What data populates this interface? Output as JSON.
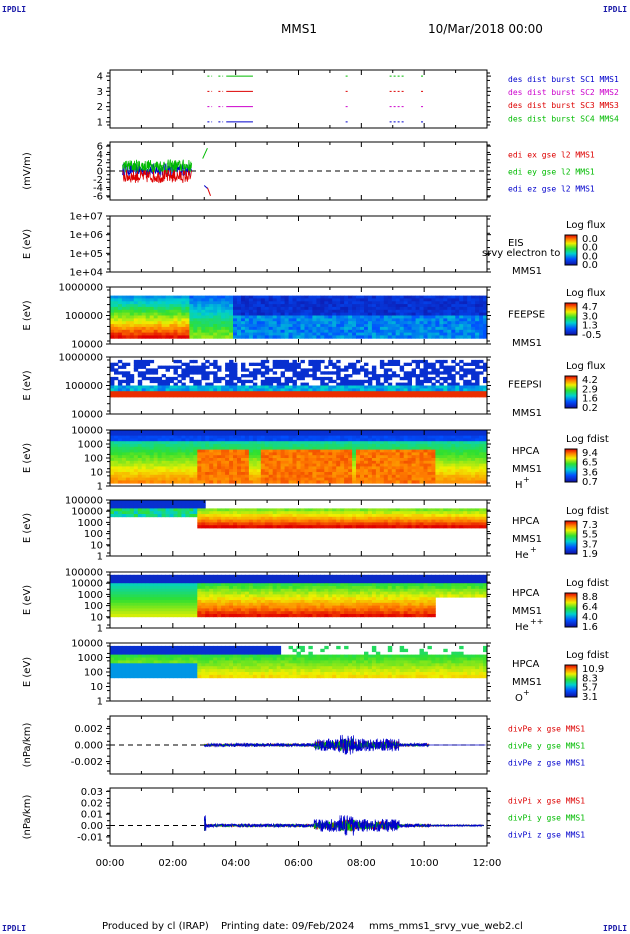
{
  "corners": [
    "IPDLI",
    "IPDLI",
    "IPDLI",
    "IPDLI"
  ],
  "header": {
    "spacecraft": "MMS1",
    "date": "10/Mar/2018 00:00"
  },
  "footer": {
    "produced": "Produced by cl (IRAP)",
    "printing": "Printing date: 09/Feb/2024",
    "file": "mms_mms1_srvy_vue_web2.cl"
  },
  "colors": {
    "red": "#dd0000",
    "green": "#00bb00",
    "blue": "#0000cc",
    "magenta": "#cc00cc",
    "text": "#000000"
  },
  "chart_data": [
    {
      "type": "line",
      "id": "burst",
      "ylabel": "",
      "yticks": [
        "1",
        "2",
        "3",
        "4"
      ],
      "ylim": [
        0.6,
        4.4
      ],
      "legend": [
        {
          "name": "des dist burst SC1 MMS1",
          "color": "#0000cc"
        },
        {
          "name": "des dist burst SC2 MMS2",
          "color": "#cc00cc"
        },
        {
          "name": "des dist burst SC3 MMS3",
          "color": "#dd0000"
        },
        {
          "name": "des dist burst SC4 MMS4",
          "color": "#00bb00"
        }
      ],
      "series": [
        {
          "name": "des dist burst SC1 MMS1",
          "level": 1,
          "color": "#0000cc",
          "segments": [
            [
              3.1,
              3.25
            ],
            [
              3.45,
              3.6
            ],
            [
              3.7,
              4.55
            ],
            [
              7.5,
              7.6
            ],
            [
              8.9,
              9.4
            ],
            [
              9.9,
              10.0
            ]
          ]
        },
        {
          "name": "des dist burst SC2 MMS2",
          "level": 2,
          "color": "#cc00cc",
          "segments": [
            [
              3.1,
              3.25
            ],
            [
              3.45,
              3.6
            ],
            [
              3.7,
              4.55
            ],
            [
              7.5,
              7.6
            ],
            [
              8.9,
              9.4
            ],
            [
              9.9,
              10.0
            ]
          ]
        },
        {
          "name": "des dist burst SC3 MMS3",
          "level": 3,
          "color": "#dd0000",
          "segments": [
            [
              3.1,
              3.25
            ],
            [
              3.45,
              3.6
            ],
            [
              3.7,
              4.55
            ],
            [
              7.5,
              7.6
            ],
            [
              8.9,
              9.4
            ],
            [
              9.9,
              10.0
            ]
          ]
        },
        {
          "name": "des dist burst SC4 MMS4",
          "level": 4,
          "color": "#00bb00",
          "segments": [
            [
              3.1,
              3.25
            ],
            [
              3.45,
              3.6
            ],
            [
              3.7,
              4.55
            ],
            [
              7.5,
              7.6
            ],
            [
              8.9,
              9.4
            ],
            [
              9.9,
              10.0
            ]
          ]
        }
      ]
    },
    {
      "type": "line",
      "id": "edi",
      "ylabel": "(mV/m)",
      "yticks": [
        "-6",
        "-4",
        "-2",
        "0",
        "2",
        "4",
        "6"
      ],
      "ylim": [
        -7,
        7
      ],
      "legend": [
        {
          "name": "edi ex gse l2 MMS1",
          "color": "#dd0000"
        },
        {
          "name": "edi ey gse l2 MMS1",
          "color": "#00bb00"
        },
        {
          "name": "edi ez gse l2 MMS1",
          "color": "#0000cc"
        }
      ],
      "data_range": [
        0.4,
        2.6
      ],
      "extra_points_x": [
        2.95,
        3.05,
        3.15
      ]
    },
    {
      "type": "heatmap",
      "id": "eis",
      "ylabel": "E (eV)",
      "yticks": [
        "1e+04",
        "1e+05",
        "1e+06",
        "1e+07"
      ],
      "instrument": [
        "EIS",
        "MMS1"
      ],
      "overlay_label": "srvy electron to",
      "colorbar": {
        "title": "Log flux",
        "ticks": [
          "0.0",
          "0.0",
          "0.0",
          "0.0"
        ]
      }
    },
    {
      "type": "heatmap",
      "id": "feepse",
      "ylabel": "E (eV)",
      "yticks": [
        "10000",
        "100000",
        "1000000"
      ],
      "instrument": [
        "FEEPSE",
        "MMS1"
      ],
      "colorbar": {
        "title": "Log flux",
        "ticks": [
          "4.7",
          "3.0",
          "1.3",
          "-0.5"
        ]
      }
    },
    {
      "type": "heatmap",
      "id": "feepsi",
      "ylabel": "E (eV)",
      "yticks": [
        "10000",
        "100000",
        "1000000"
      ],
      "instrument": [
        "FEEPSI",
        "MMS1"
      ],
      "colorbar": {
        "title": "Log flux",
        "ticks": [
          "4.2",
          "2.9",
          "1.6",
          "0.2"
        ]
      }
    },
    {
      "type": "heatmap",
      "id": "hpca_h",
      "ylabel": "E (eV)",
      "yticks": [
        "1",
        "10",
        "100",
        "1000",
        "10000"
      ],
      "instrument": [
        "HPCA",
        "MMS1"
      ],
      "species": "H",
      "charge": "+",
      "colorbar": {
        "title": "Log fdist",
        "ticks": [
          "9.4",
          "6.5",
          "3.6",
          "0.7"
        ]
      }
    },
    {
      "type": "heatmap",
      "id": "hpca_he",
      "ylabel": "E (eV)",
      "yticks": [
        "1",
        "10",
        "100",
        "1000",
        "10000",
        "100000"
      ],
      "instrument": [
        "HPCA",
        "MMS1"
      ],
      "species": "He",
      "charge": "+",
      "colorbar": {
        "title": "Log fdist",
        "ticks": [
          "7.3",
          "5.5",
          "3.7",
          "1.9"
        ]
      }
    },
    {
      "type": "heatmap",
      "id": "hpca_he2",
      "ylabel": "E (eV)",
      "yticks": [
        "1",
        "10",
        "100",
        "1000",
        "10000",
        "100000"
      ],
      "instrument": [
        "HPCA",
        "MMS1"
      ],
      "species": "He",
      "charge": "++",
      "colorbar": {
        "title": "Log fdist",
        "ticks": [
          "8.8",
          "6.4",
          "4.0",
          "1.6"
        ]
      }
    },
    {
      "type": "heatmap",
      "id": "hpca_o",
      "ylabel": "E (eV)",
      "yticks": [
        "1",
        "10",
        "100",
        "1000",
        "10000"
      ],
      "instrument": [
        "HPCA",
        "MMS1"
      ],
      "species": "O",
      "charge": "+",
      "colorbar": {
        "title": "Log fdist",
        "ticks": [
          "10.9",
          "8.3",
          "5.7",
          "3.1"
        ]
      }
    },
    {
      "type": "line",
      "id": "divpe",
      "ylabel": "(nPa/km)",
      "yticks": [
        "-0.002",
        "0.000",
        "0.002"
      ],
      "ylim": [
        -0.0035,
        0.0035
      ],
      "legend": [
        {
          "name": "divPe x gse MMS1",
          "color": "#dd0000"
        },
        {
          "name": "divPe y gse MMS1",
          "color": "#00bb00"
        },
        {
          "name": "divPe z gse MMS1",
          "color": "#0000cc"
        }
      ],
      "data_range": [
        3.0,
        10.15
      ]
    },
    {
      "type": "line",
      "id": "divpi",
      "ylabel": "(nPa/km)",
      "yticks": [
        "-0.01",
        "0.00",
        "0.01",
        "0.02",
        "0.03"
      ],
      "ylim": [
        -0.018,
        0.033
      ],
      "legend": [
        {
          "name": "divPi x gse MMS1",
          "color": "#dd0000"
        },
        {
          "name": "divPi y gse MMS1",
          "color": "#00bb00"
        },
        {
          "name": "divPi z gse MMS1",
          "color": "#0000cc"
        }
      ],
      "data_range": [
        3.0,
        12.0
      ]
    }
  ],
  "xaxis": {
    "ticks": [
      "00:00",
      "02:00",
      "04:00",
      "06:00",
      "08:00",
      "10:00",
      "12:00"
    ],
    "range_hours": [
      0,
      12
    ]
  }
}
